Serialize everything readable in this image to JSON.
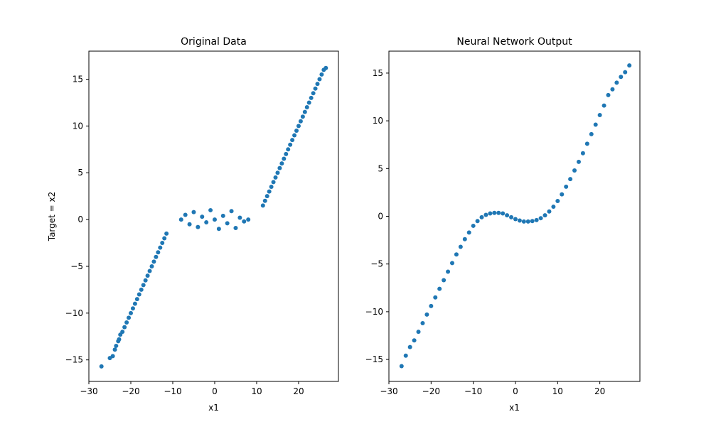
{
  "chart_data": [
    {
      "type": "scatter",
      "title": "Original Data",
      "xlabel": "x1",
      "ylabel": "Target = x2",
      "xlim": [
        -30,
        29.5
      ],
      "ylim": [
        -17.3,
        18.0
      ],
      "xticks": [
        -30,
        -20,
        -10,
        0,
        10,
        20
      ],
      "yticks": [
        -15,
        -10,
        -5,
        0,
        5,
        10,
        15
      ],
      "xtick_labels": [
        "−30",
        "−20",
        "−10",
        "0",
        "10",
        "20"
      ],
      "ytick_labels": [
        "−15",
        "−10",
        "−5",
        "0",
        "5",
        "10",
        "15"
      ],
      "grid": false,
      "color": "#1f77b4",
      "series": [
        {
          "x": [
            -27.0,
            -25.0,
            -24.3,
            -23.8,
            -23.5,
            -23.0,
            -22.8,
            -22.5,
            -22.0,
            -21.5,
            -21.0,
            -20.5,
            -20.0,
            -19.5,
            -19.0,
            -18.5,
            -18.0,
            -17.5,
            -17.0,
            -16.5,
            -16.0,
            -15.5,
            -15.0,
            -14.5,
            -14.0,
            -13.5,
            -13.0,
            -12.5,
            -12.0,
            -11.5,
            -8.0,
            -7.0,
            -6.0,
            -5.0,
            -4.0,
            -3.0,
            -2.0,
            -1.0,
            0.0,
            1.0,
            2.0,
            3.0,
            4.0,
            5.0,
            6.0,
            7.0,
            8.0,
            11.5,
            12.0,
            12.5,
            13.0,
            13.5,
            14.0,
            14.5,
            15.0,
            15.5,
            16.0,
            16.5,
            17.0,
            17.5,
            18.0,
            18.5,
            19.0,
            19.5,
            20.0,
            20.5,
            21.0,
            21.5,
            22.0,
            22.5,
            23.0,
            23.5,
            24.0,
            24.5,
            25.0,
            25.5,
            26.0,
            26.5
          ],
          "y": [
            -15.7,
            -14.8,
            -14.6,
            -13.9,
            -13.5,
            -13.0,
            -12.8,
            -12.3,
            -12.0,
            -11.5,
            -11.0,
            -10.5,
            -10.0,
            -9.5,
            -9.0,
            -8.5,
            -8.0,
            -7.5,
            -7.0,
            -6.5,
            -6.0,
            -5.5,
            -5.0,
            -4.5,
            -4.0,
            -3.5,
            -3.0,
            -2.5,
            -2.0,
            -1.5,
            0.0,
            0.5,
            -0.5,
            0.8,
            -0.8,
            0.3,
            -0.3,
            1.0,
            0.0,
            -1.0,
            0.4,
            -0.4,
            0.9,
            -0.9,
            0.2,
            -0.2,
            0.0,
            1.5,
            2.0,
            2.5,
            3.0,
            3.5,
            4.0,
            4.5,
            5.0,
            5.5,
            6.0,
            6.5,
            7.0,
            7.5,
            8.0,
            8.5,
            9.0,
            9.5,
            10.0,
            10.5,
            11.0,
            11.5,
            12.0,
            12.5,
            13.0,
            13.5,
            14.0,
            14.5,
            15.0,
            15.5,
            16.0,
            16.2
          ]
        }
      ]
    },
    {
      "type": "scatter",
      "title": "Neural Network Output",
      "xlabel": "x1",
      "ylabel": "",
      "xlim": [
        -30,
        29.5
      ],
      "ylim": [
        -17.3,
        17.3
      ],
      "xticks": [
        -30,
        -20,
        -10,
        0,
        10,
        20
      ],
      "yticks": [
        -15,
        -10,
        -5,
        0,
        5,
        10,
        15
      ],
      "xtick_labels": [
        "−30",
        "−20",
        "−10",
        "0",
        "10",
        "20"
      ],
      "ytick_labels": [
        "−15",
        "−10",
        "−5",
        "0",
        "5",
        "10",
        "15"
      ],
      "grid": false,
      "color": "#1f77b4",
      "series": [
        {
          "x": [
            -27.0,
            -26.0,
            -25.0,
            -24.0,
            -23.0,
            -22.0,
            -21.0,
            -20.0,
            -19.0,
            -18.0,
            -17.0,
            -16.0,
            -15.0,
            -14.0,
            -13.0,
            -12.0,
            -11.0,
            -10.0,
            -9.0,
            -8.0,
            -7.0,
            -6.0,
            -5.0,
            -4.0,
            -3.0,
            -2.0,
            -1.0,
            0.0,
            1.0,
            2.0,
            3.0,
            4.0,
            5.0,
            6.0,
            7.0,
            8.0,
            9.0,
            10.0,
            11.0,
            12.0,
            13.0,
            14.0,
            15.0,
            16.0,
            17.0,
            18.0,
            19.0,
            20.0,
            21.0,
            22.0,
            23.0,
            24.0,
            25.0,
            26.0,
            27.0
          ],
          "y": [
            -15.7,
            -14.6,
            -13.7,
            -13.0,
            -12.1,
            -11.2,
            -10.3,
            -9.4,
            -8.5,
            -7.6,
            -6.7,
            -5.8,
            -4.9,
            -4.0,
            -3.2,
            -2.4,
            -1.7,
            -1.0,
            -0.5,
            -0.1,
            0.15,
            0.3,
            0.35,
            0.35,
            0.3,
            0.1,
            -0.1,
            -0.3,
            -0.45,
            -0.55,
            -0.55,
            -0.5,
            -0.4,
            -0.2,
            0.1,
            0.5,
            1.0,
            1.6,
            2.3,
            3.1,
            3.9,
            4.8,
            5.7,
            6.6,
            7.6,
            8.6,
            9.6,
            10.6,
            11.6,
            12.7,
            13.3,
            14.0,
            14.6,
            15.1,
            15.8
          ]
        }
      ]
    }
  ]
}
